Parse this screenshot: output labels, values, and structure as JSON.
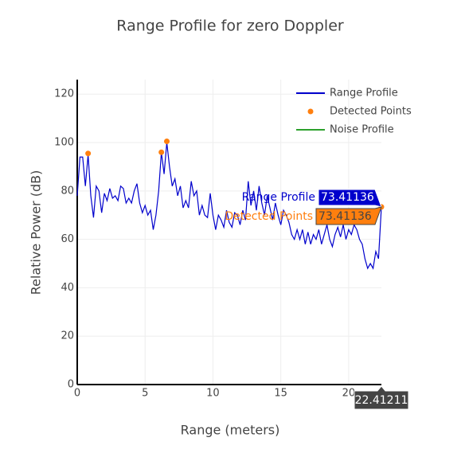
{
  "chart_data": {
    "type": "line",
    "title": "Range Profile for zero Doppler",
    "x_label": "Range (meters)",
    "y_label": "Relative Power (dB)",
    "xlim": [
      0,
      22.41211
    ],
    "ylim": [
      0,
      126
    ],
    "xticks": [
      0,
      5,
      10,
      15,
      20
    ],
    "yticks": [
      0,
      20,
      40,
      60,
      80,
      100,
      120
    ],
    "grid": true,
    "series": [
      {
        "name": "Range Profile",
        "color": "#0000cc",
        "mode": "line",
        "x": [
          0,
          0.2,
          0.4,
          0.6,
          0.8,
          1.0,
          1.2,
          1.4,
          1.6,
          1.8,
          2.0,
          2.2,
          2.4,
          2.6,
          2.8,
          3.0,
          3.2,
          3.4,
          3.6,
          3.8,
          4.0,
          4.2,
          4.4,
          4.6,
          4.8,
          5.0,
          5.2,
          5.4,
          5.6,
          5.8,
          6.0,
          6.2,
          6.4,
          6.6,
          6.8,
          7.0,
          7.2,
          7.4,
          7.6,
          7.8,
          8.0,
          8.2,
          8.4,
          8.6,
          8.8,
          9.0,
          9.2,
          9.4,
          9.6,
          9.8,
          10.0,
          10.2,
          10.4,
          10.6,
          10.8,
          11.0,
          11.2,
          11.4,
          11.6,
          11.8,
          12.0,
          12.2,
          12.4,
          12.6,
          12.8,
          13.0,
          13.2,
          13.4,
          13.6,
          13.8,
          14.0,
          14.2,
          14.4,
          14.6,
          14.8,
          15.0,
          15.2,
          15.4,
          15.6,
          15.8,
          16.0,
          16.2,
          16.4,
          16.6,
          16.8,
          17.0,
          17.2,
          17.4,
          17.6,
          17.8,
          18.0,
          18.2,
          18.4,
          18.6,
          18.8,
          19.0,
          19.2,
          19.4,
          19.6,
          19.8,
          20.0,
          20.2,
          20.4,
          20.6,
          20.8,
          21.0,
          21.2,
          21.4,
          21.6,
          21.8,
          22.0,
          22.2,
          22.41211
        ],
        "values": [
          78,
          94,
          94,
          82,
          95,
          78,
          69,
          82,
          80,
          71,
          79,
          76,
          81,
          77,
          78,
          76,
          82,
          81,
          75,
          77,
          75,
          80,
          83,
          75,
          71,
          74,
          70,
          72,
          64,
          70,
          80,
          96,
          87,
          100,
          90,
          82,
          85,
          78,
          82,
          73,
          76,
          73,
          84,
          78,
          80,
          70,
          74,
          70,
          69,
          79,
          70,
          64,
          70,
          68,
          65,
          72,
          67,
          65,
          71,
          70,
          66,
          72,
          68,
          84,
          74,
          80,
          72,
          82,
          75,
          70,
          78,
          73,
          68,
          75,
          70,
          66,
          72,
          70,
          67,
          62,
          60,
          64,
          60,
          64,
          58,
          63,
          58,
          62,
          60,
          64,
          58,
          62,
          66,
          60,
          57,
          62,
          65,
          61,
          66,
          60,
          64,
          62,
          66,
          64,
          60,
          58,
          52,
          48,
          50,
          48,
          55,
          52,
          73.41136
        ]
      },
      {
        "name": "Detected Points",
        "color": "#ff7f0e",
        "mode": "markers",
        "x": [
          0.8,
          6.2,
          6.6,
          22.41211
        ],
        "values": [
          95.5,
          96,
          100.5,
          73.41136
        ]
      },
      {
        "name": "Noise Profile",
        "color": "#2ca02c",
        "mode": "line",
        "x": [],
        "values": []
      }
    ]
  }
}
